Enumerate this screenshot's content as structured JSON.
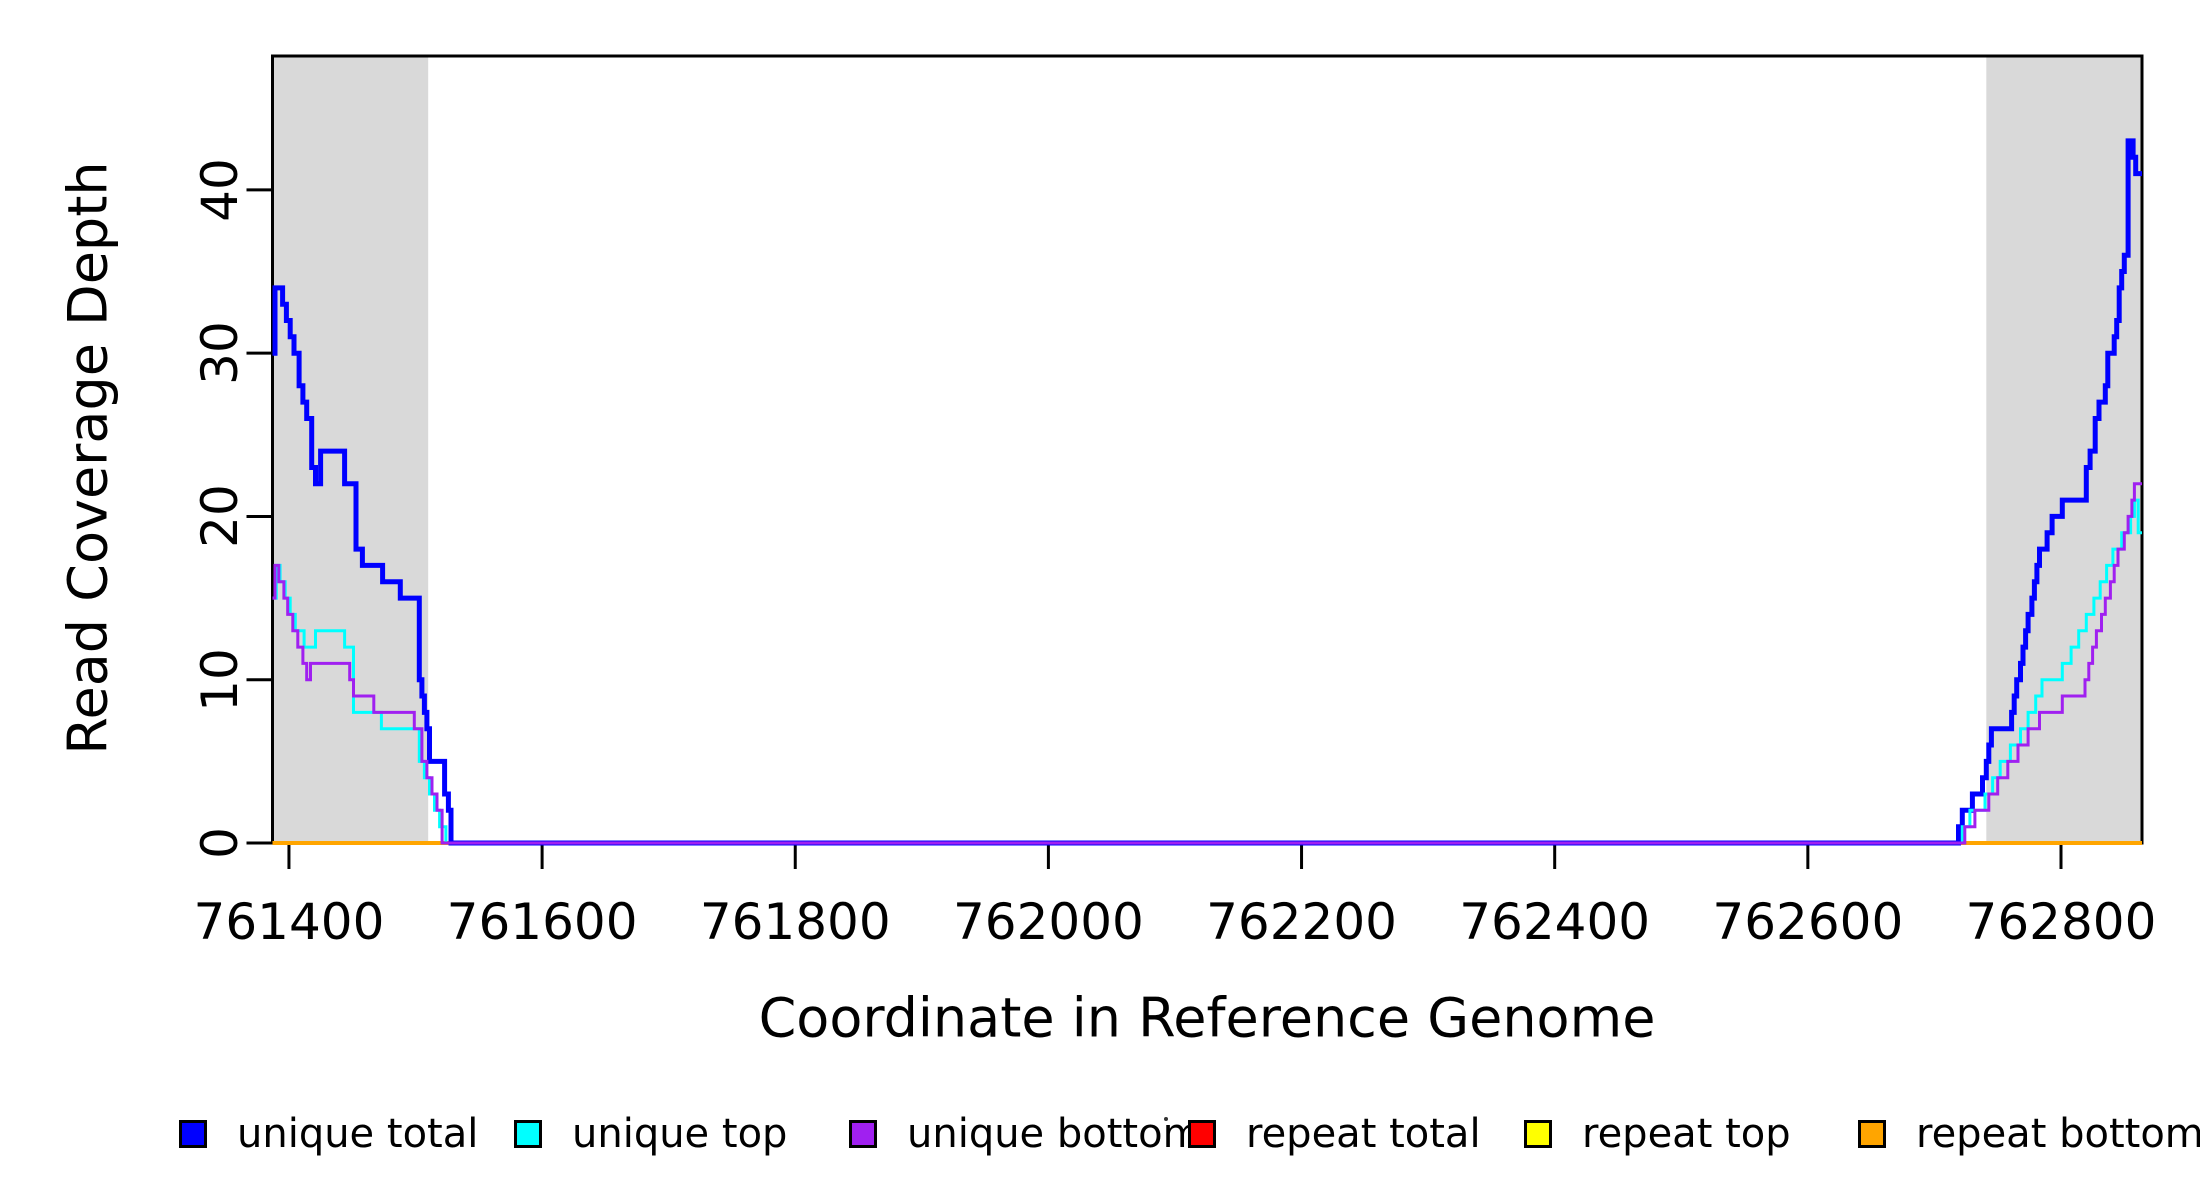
{
  "chart_data": {
    "type": "line",
    "subtype": "step",
    "title": "",
    "xlabel": "Coordinate in Reference Genome",
    "ylabel": "Read Coverage Depth",
    "xlim": [
      761387,
      762864
    ],
    "ylim": [
      0,
      48.2
    ],
    "x_ticks": [
      761400,
      761600,
      761800,
      762000,
      762200,
      762400,
      762600,
      762800
    ],
    "y_ticks": [
      0,
      10,
      20,
      30,
      40
    ],
    "grid": false,
    "legend_position": "bottom",
    "background_color": "#ffffff",
    "box_color": "#000000",
    "shaded_regions": [
      {
        "x0": 761387,
        "x1": 761510,
        "color": "#D9D9D9"
      },
      {
        "x0": 762741,
        "x1": 762864,
        "color": "#D9D9D9"
      }
    ],
    "series": [
      {
        "name": "repeat total",
        "color": "#FF0000",
        "line_width": 4,
        "points": [
          [
            761387,
            0
          ]
        ]
      },
      {
        "name": "repeat top",
        "color": "#FFFF00",
        "line_width": 4,
        "points": [
          [
            761387,
            0
          ]
        ]
      },
      {
        "name": "repeat bottom",
        "color": "#FFA500",
        "line_width": 4,
        "points": [
          [
            761387,
            0
          ]
        ]
      },
      {
        "name": "unique total",
        "color": "#0000FF",
        "line_width": 5,
        "points": [
          [
            761387,
            30
          ],
          [
            761389,
            34
          ],
          [
            761395,
            33
          ],
          [
            761398,
            32
          ],
          [
            761401,
            31
          ],
          [
            761404,
            30
          ],
          [
            761408,
            28
          ],
          [
            761411,
            27
          ],
          [
            761414,
            26
          ],
          [
            761418,
            23
          ],
          [
            761421,
            22
          ],
          [
            761425,
            24
          ],
          [
            761444,
            22
          ],
          [
            761453,
            18
          ],
          [
            761458,
            17
          ],
          [
            761474,
            16
          ],
          [
            761488,
            15
          ],
          [
            761503,
            10
          ],
          [
            761505,
            9
          ],
          [
            761507,
            8
          ],
          [
            761509,
            7
          ],
          [
            761511,
            5
          ],
          [
            761523,
            3
          ],
          [
            761526,
            2
          ],
          [
            761528,
            0
          ],
          [
            762719,
            1
          ],
          [
            762722,
            2
          ],
          [
            762730,
            3
          ],
          [
            762738,
            4
          ],
          [
            762741,
            5
          ],
          [
            762743,
            6
          ],
          [
            762745,
            7
          ],
          [
            762761,
            8
          ],
          [
            762763,
            9
          ],
          [
            762765,
            10
          ],
          [
            762768,
            11
          ],
          [
            762770,
            12
          ],
          [
            762772,
            13
          ],
          [
            762774,
            14
          ],
          [
            762777,
            15
          ],
          [
            762779,
            16
          ],
          [
            762781,
            17
          ],
          [
            762783,
            18
          ],
          [
            762789,
            19
          ],
          [
            762793,
            20
          ],
          [
            762801,
            21
          ],
          [
            762820,
            23
          ],
          [
            762823,
            24
          ],
          [
            762827,
            26
          ],
          [
            762830,
            27
          ],
          [
            762835,
            28
          ],
          [
            762837,
            30
          ],
          [
            762842,
            31
          ],
          [
            762844,
            32
          ],
          [
            762846,
            34
          ],
          [
            762848,
            35
          ],
          [
            762850,
            36
          ],
          [
            762853,
            43
          ],
          [
            762857,
            42
          ],
          [
            762859,
            41
          ]
        ]
      },
      {
        "name": "unique top",
        "color": "#00FFFF",
        "line_width": 3,
        "points": [
          [
            761387,
            15
          ],
          [
            761390,
            17
          ],
          [
            761393,
            16
          ],
          [
            761397,
            15
          ],
          [
            761401,
            14
          ],
          [
            761405,
            13
          ],
          [
            761412,
            12
          ],
          [
            761421,
            13
          ],
          [
            761444,
            12
          ],
          [
            761451,
            8
          ],
          [
            761473,
            7
          ],
          [
            761503,
            5
          ],
          [
            761507,
            4
          ],
          [
            761511,
            3
          ],
          [
            761515,
            2
          ],
          [
            761519,
            1
          ],
          [
            761524,
            0
          ],
          [
            762722,
            1
          ],
          [
            762728,
            2
          ],
          [
            762740,
            3
          ],
          [
            762746,
            4
          ],
          [
            762752,
            5
          ],
          [
            762760,
            6
          ],
          [
            762768,
            7
          ],
          [
            762774,
            8
          ],
          [
            762780,
            9
          ],
          [
            762785,
            10
          ],
          [
            762801,
            11
          ],
          [
            762808,
            12
          ],
          [
            762814,
            13
          ],
          [
            762820,
            14
          ],
          [
            762826,
            15
          ],
          [
            762831,
            16
          ],
          [
            762836,
            17
          ],
          [
            762841,
            18
          ],
          [
            762848,
            19
          ],
          [
            762855,
            20
          ],
          [
            762858,
            21
          ],
          [
            762861,
            19
          ]
        ]
      },
      {
        "name": "unique bottom",
        "color": "#A020F0",
        "line_width": 3,
        "points": [
          [
            761387,
            15
          ],
          [
            761389,
            17
          ],
          [
            761392,
            16
          ],
          [
            761396,
            15
          ],
          [
            761399,
            14
          ],
          [
            761403,
            13
          ],
          [
            761407,
            12
          ],
          [
            761411,
            11
          ],
          [
            761414,
            10
          ],
          [
            761417,
            11
          ],
          [
            761448,
            10
          ],
          [
            761451,
            9
          ],
          [
            761467,
            8
          ],
          [
            761499,
            7
          ],
          [
            761505,
            5
          ],
          [
            761509,
            4
          ],
          [
            761513,
            3
          ],
          [
            761517,
            2
          ],
          [
            761521,
            0
          ],
          [
            762724,
            1
          ],
          [
            762732,
            2
          ],
          [
            762743,
            3
          ],
          [
            762750,
            4
          ],
          [
            762758,
            5
          ],
          [
            762766,
            6
          ],
          [
            762774,
            7
          ],
          [
            762783,
            8
          ],
          [
            762801,
            9
          ],
          [
            762819,
            10
          ],
          [
            762822,
            11
          ],
          [
            762825,
            12
          ],
          [
            762828,
            13
          ],
          [
            762832,
            14
          ],
          [
            762835,
            15
          ],
          [
            762839,
            16
          ],
          [
            762842,
            17
          ],
          [
            762845,
            18
          ],
          [
            762850,
            19
          ],
          [
            762853,
            20
          ],
          [
            762856,
            21
          ],
          [
            762858,
            22
          ]
        ]
      }
    ]
  },
  "axis": {
    "x_label": "Coordinate in Reference Genome",
    "y_label": "Read Coverage Depth"
  },
  "legend": {
    "items": [
      {
        "label": "unique total",
        "color": "#0000FF"
      },
      {
        "label": "unique top",
        "color": "#00FFFF"
      },
      {
        "label": "unique bottom",
        "color": "#A020F0"
      },
      {
        "label": "repeat total",
        "color": "#FF0000"
      },
      {
        "label": "repeat top",
        "color": "#FFFF00"
      },
      {
        "label": "repeat bottom",
        "color": "#FFA500"
      }
    ]
  }
}
